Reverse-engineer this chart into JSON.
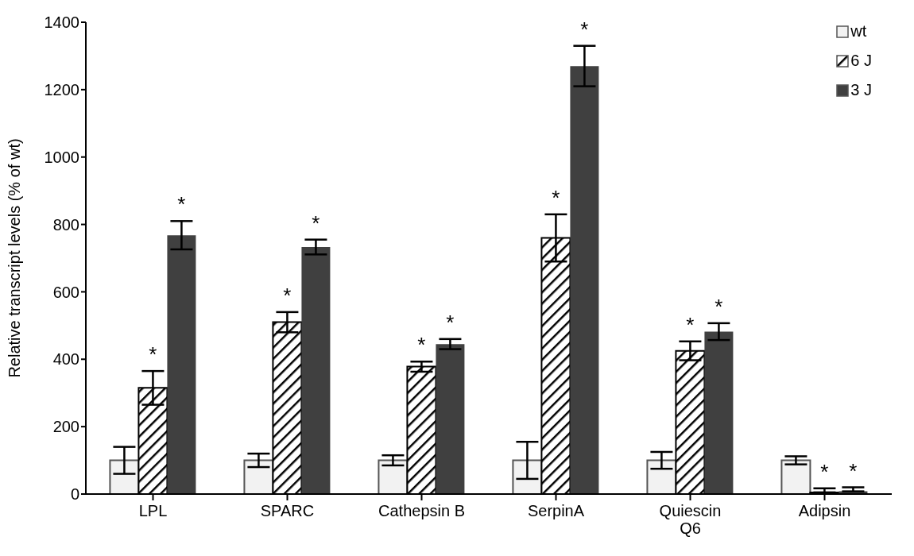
{
  "chart_data": {
    "type": "bar",
    "ylabel": "Relative transcript levels (% of wt)",
    "categories": [
      "LPL",
      "SPARC",
      "Cathepsin B",
      "SerpinA",
      "Quiescin\nQ6",
      "Adipsin"
    ],
    "series": [
      {
        "name": "wt",
        "color": "#f2f2f2",
        "values": [
          100,
          100,
          100,
          100,
          100,
          100
        ],
        "errors": [
          40,
          20,
          15,
          55,
          25,
          12
        ]
      },
      {
        "name": "6 J",
        "color": "#000000",
        "values": [
          315,
          510,
          378,
          760,
          425,
          5
        ],
        "errors": [
          50,
          30,
          15,
          70,
          28,
          [
            5,
            17
          ]
        ],
        "value_labels": [
          "*",
          "*",
          "*",
          "*",
          "*",
          "*"
        ]
      },
      {
        "name": "3 J",
        "color": "#404040",
        "values": [
          768,
          733,
          445,
          1270,
          482,
          8
        ],
        "errors": [
          42,
          22,
          15,
          60,
          25,
          [
            8,
            20
          ]
        ],
        "value_labels": [
          "*",
          "*",
          "*",
          "*",
          "*",
          "*"
        ]
      }
    ],
    "ylim": [
      0,
      1400
    ],
    "yticks": [
      0,
      200,
      400,
      600,
      800,
      1000,
      1200,
      1400
    ],
    "legend": "top right"
  }
}
